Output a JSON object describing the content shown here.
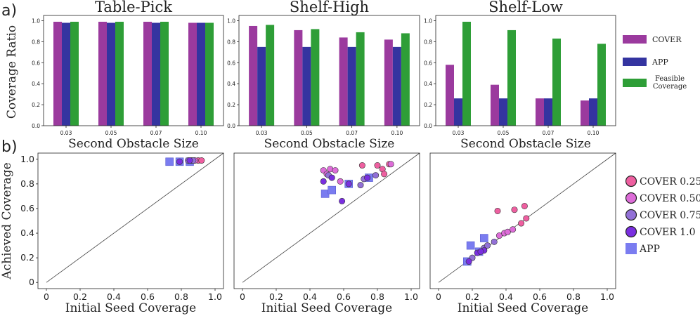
{
  "figure": {
    "panel_labels": [
      "a)",
      "b)"
    ],
    "colors": {
      "cover": "#9b3a9e",
      "app": "#3434a0",
      "feasible": "#2e9e37",
      "cover_025": "#ee5fa0",
      "cover_050": "#dd6cd8",
      "cover_075": "#9270d6",
      "cover_100": "#7a2fe0",
      "app_marker": "#7a7cf0",
      "axis": "#222222"
    }
  },
  "chart_data": [
    {
      "type": "bar",
      "title": "Table-Pick",
      "xlabel": "Second Obstacle Size",
      "ylabel": "Coverage Ratio",
      "categories": [
        "0.03",
        "0.05",
        "0.07",
        "0.10"
      ],
      "ylim": [
        0,
        1.05
      ],
      "yticks": [
        "0.0",
        "0.2",
        "0.4",
        "0.6",
        "0.8",
        "1.0"
      ],
      "series": [
        {
          "name": "COVER",
          "values": [
            0.99,
            0.99,
            0.99,
            0.98
          ]
        },
        {
          "name": "APP",
          "values": [
            0.98,
            0.98,
            0.98,
            0.98
          ]
        },
        {
          "name": "Feasible Coverage",
          "values": [
            0.99,
            0.99,
            0.99,
            0.98
          ]
        }
      ]
    },
    {
      "type": "bar",
      "title": "Shelf-High",
      "xlabel": "Second Obstacle Size",
      "categories": [
        "0.03",
        "0.05",
        "0.07",
        "0.10"
      ],
      "ylim": [
        0,
        1.05
      ],
      "yticks": [
        "0.0",
        "0.2",
        "0.4",
        "0.6",
        "0.8",
        "1.0"
      ],
      "series": [
        {
          "name": "COVER",
          "values": [
            0.95,
            0.91,
            0.84,
            0.82
          ]
        },
        {
          "name": "APP",
          "values": [
            0.75,
            0.75,
            0.75,
            0.75
          ]
        },
        {
          "name": "Feasible Coverage",
          "values": [
            0.96,
            0.92,
            0.89,
            0.88
          ]
        }
      ]
    },
    {
      "type": "bar",
      "title": "Shelf-Low",
      "xlabel": "Second Obstacle Size",
      "categories": [
        "0.03",
        "0.05",
        "0.07",
        "0.10"
      ],
      "ylim": [
        0,
        1.05
      ],
      "yticks": [
        "0.0",
        "0.2",
        "0.4",
        "0.6",
        "0.8",
        "1.0"
      ],
      "series": [
        {
          "name": "COVER",
          "values": [
            0.58,
            0.39,
            0.26,
            0.24
          ]
        },
        {
          "name": "APP",
          "values": [
            0.26,
            0.26,
            0.26,
            0.26
          ]
        },
        {
          "name": "Feasible Coverage",
          "values": [
            0.99,
            0.91,
            0.83,
            0.78
          ]
        }
      ]
    },
    {
      "type": "scatter",
      "xlabel": "Initial Seed Coverage",
      "ylabel": "Achieved Coverage",
      "xlim": [
        -0.05,
        1.05
      ],
      "ylim": [
        -0.05,
        1.05
      ],
      "ticks": [
        "0",
        "0.2",
        "0.4",
        "0.6",
        "0.8",
        "1.0"
      ],
      "diagonal": true,
      "series": [
        {
          "name": "COVER 0.25",
          "points": [
            [
              0.9,
              0.99
            ],
            [
              0.92,
              0.99
            ]
          ]
        },
        {
          "name": "COVER 0.50",
          "points": [
            [
              0.86,
              0.99
            ],
            [
              0.88,
              0.99
            ]
          ]
        },
        {
          "name": "COVER 0.75",
          "points": [
            [
              0.84,
              0.99
            ],
            [
              0.87,
              0.99
            ]
          ]
        },
        {
          "name": "COVER 1.0",
          "points": [
            [
              0.79,
              0.98
            ],
            [
              0.85,
              0.99
            ]
          ]
        },
        {
          "name": "APP",
          "points": [
            [
              0.73,
              0.98
            ],
            [
              0.79,
              0.98
            ],
            [
              0.85,
              0.98
            ]
          ]
        }
      ]
    },
    {
      "type": "scatter",
      "xlabel": "Initial Seed Coverage",
      "xlim": [
        -0.05,
        1.05
      ],
      "ylim": [
        -0.05,
        1.05
      ],
      "ticks": [
        "0",
        "0.2",
        "0.4",
        "0.6",
        "0.8",
        "1.0"
      ],
      "diagonal": true,
      "series": [
        {
          "name": "COVER 0.25",
          "points": [
            [
              0.71,
              0.95
            ],
            [
              0.8,
              0.95
            ],
            [
              0.83,
              0.92
            ],
            [
              0.87,
              0.96
            ],
            [
              0.84,
              0.88
            ]
          ]
        },
        {
          "name": "COVER 0.50",
          "points": [
            [
              0.48,
              0.91
            ],
            [
              0.52,
              0.92
            ],
            [
              0.55,
              0.91
            ],
            [
              0.5,
              0.88
            ],
            [
              0.58,
              0.82
            ],
            [
              0.88,
              0.96
            ]
          ]
        },
        {
          "name": "COVER 0.75",
          "points": [
            [
              0.51,
              0.87
            ],
            [
              0.7,
              0.79
            ],
            [
              0.72,
              0.84
            ],
            [
              0.79,
              0.87
            ]
          ]
        },
        {
          "name": "COVER 1.0",
          "points": [
            [
              0.48,
              0.82
            ],
            [
              0.53,
              0.85
            ],
            [
              0.63,
              0.8
            ],
            [
              0.59,
              0.66
            ],
            [
              0.74,
              0.85
            ]
          ]
        },
        {
          "name": "APP",
          "points": [
            [
              0.49,
              0.72
            ],
            [
              0.53,
              0.75
            ],
            [
              0.63,
              0.8
            ],
            [
              0.75,
              0.85
            ]
          ]
        }
      ]
    },
    {
      "type": "scatter",
      "xlabel": "Initial Seed Coverage",
      "xlim": [
        -0.05,
        1.05
      ],
      "ylim": [
        -0.05,
        1.05
      ],
      "ticks": [
        "0",
        "0.2",
        "0.4",
        "0.6",
        "0.8",
        "1.0"
      ],
      "diagonal": true,
      "series": [
        {
          "name": "COVER 0.25",
          "points": [
            [
              0.35,
              0.58
            ],
            [
              0.45,
              0.59
            ],
            [
              0.51,
              0.62
            ],
            [
              0.49,
              0.48
            ],
            [
              0.52,
              0.52
            ]
          ]
        },
        {
          "name": "COVER 0.50",
          "points": [
            [
              0.36,
              0.38
            ],
            [
              0.39,
              0.4
            ],
            [
              0.41,
              0.41
            ],
            [
              0.44,
              0.43
            ]
          ]
        },
        {
          "name": "COVER 0.75",
          "points": [
            [
              0.27,
              0.28
            ],
            [
              0.33,
              0.33
            ],
            [
              0.2,
              0.2
            ],
            [
              0.29,
              0.3
            ]
          ]
        },
        {
          "name": "COVER 1.0",
          "points": [
            [
              0.18,
              0.17
            ],
            [
              0.23,
              0.24
            ],
            [
              0.27,
              0.26
            ],
            [
              0.25,
              0.25
            ]
          ]
        },
        {
          "name": "APP",
          "points": [
            [
              0.17,
              0.17
            ],
            [
              0.19,
              0.3
            ],
            [
              0.24,
              0.25
            ],
            [
              0.27,
              0.36
            ]
          ]
        }
      ]
    }
  ],
  "legends": {
    "bars": [
      "COVER",
      "APP",
      "Feasible Coverage"
    ],
    "scatter": [
      "COVER 0.25",
      "COVER 0.50",
      "COVER 0.75",
      "COVER 1.0",
      "APP"
    ]
  }
}
